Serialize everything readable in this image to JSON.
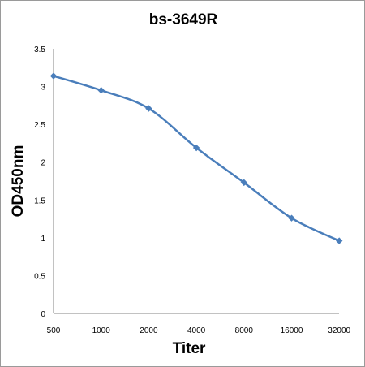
{
  "chart_data": {
    "type": "line",
    "title": "bs-3649R",
    "xlabel": "Titer",
    "ylabel": "OD450nm",
    "categories": [
      "500",
      "1000",
      "2000",
      "4000",
      "8000",
      "16000",
      "32000"
    ],
    "series": [
      {
        "values": [
          3.14,
          2.95,
          2.71,
          2.19,
          1.73,
          1.26,
          0.96
        ]
      }
    ],
    "ylim": [
      0,
      3.5
    ],
    "yticks": [
      "0",
      "0.5",
      "1",
      "1.5",
      "2",
      "2.5",
      "3",
      "3.5"
    ],
    "grid": false,
    "legend": "none",
    "line_color": "#4a7ebb",
    "marker": "diamond"
  }
}
